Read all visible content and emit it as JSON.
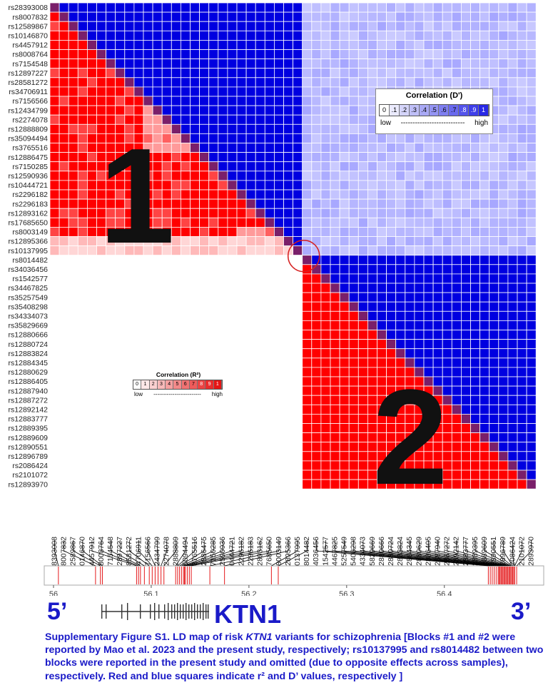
{
  "chart_data": {
    "type": "heatmap",
    "snps": [
      "rs28393008",
      "rs8007832",
      "rs12589867",
      "rs10146870",
      "rs4457912",
      "rs8008764",
      "rs7154548",
      "rs12897227",
      "rs28581272",
      "rs34706911",
      "rs7156566",
      "rs12434799",
      "rs2274078",
      "rs12888809",
      "rs35094494",
      "rs3765516",
      "rs12886475",
      "rs7150285",
      "rs12590936",
      "rs10444721",
      "rs2296182",
      "rs2296183",
      "rs12893162",
      "rs17685650",
      "rs8003149",
      "rs12895366",
      "rs10137995",
      "rs8014482",
      "rs34036456",
      "rs1542577",
      "rs34467825",
      "rs35257549",
      "rs35408298",
      "rs34334073",
      "rs35829669",
      "rs12880666",
      "rs12880724",
      "rs12883824",
      "rs12884345",
      "rs12880629",
      "rs12886405",
      "rs12887940",
      "rs12887272",
      "rs12892142",
      "rs12883777",
      "rs12889395",
      "rs12889609",
      "rs12890551",
      "rs12896789",
      "rs2086424",
      "rs2101072",
      "rs12893970"
    ],
    "lower_triangle_metric": "r2",
    "upper_triangle_metric": "D'",
    "blocks": [
      {
        "label": "1",
        "first_snp": "rs28393008",
        "last_snp": "rs12895366"
      },
      {
        "label": "2",
        "first_snp": "rs34036456",
        "last_snp": "rs12893970"
      }
    ],
    "circled_snps": [
      "rs10137995",
      "rs8014482"
    ],
    "x_axis": {
      "ticks": [
        "56",
        "56.1",
        "56.2",
        "56.3",
        "56.4"
      ],
      "tick_values": [
        56.0,
        56.1,
        56.2,
        56.3,
        56.4
      ],
      "range": [
        56.0,
        56.48
      ]
    }
  },
  "legends": {
    "dprime": {
      "title": "Correlation  (D')",
      "steps": [
        "0",
        ".1",
        ".2",
        ".3",
        ".4",
        ".5",
        ".6",
        ".7",
        ".8",
        ".9",
        "1"
      ],
      "low": "low",
      "dashes": "---------------------------",
      "high": "high"
    },
    "r2": {
      "title": "Correlation  (R²)",
      "steps": [
        "0",
        "1",
        "2",
        "3",
        "4",
        "5",
        "6",
        "7",
        "8",
        "9",
        "1"
      ],
      "low": "low",
      "dashes": "-------------------------",
      "high": "high"
    }
  },
  "gene": {
    "five_prime": "5’",
    "three_prime": "3’",
    "name": "KTN1"
  },
  "caption": {
    "part1": "Supplementary Figure S1. LD map of risk ",
    "gene": "KTN1",
    "part2": " variants for schizophrenia [Blocks #1 and #2 were reported by Mao et al.  2023 and the present study, respectively; rs10137995 and  rs8014482 between two blocks were reported in the present study and omitted (due to opposite effects across samples), respectively. Red and  blue squares indicate r² and D’ values, respectively ]"
  },
  "colors": {
    "dprime_high": "#0000e0",
    "r2_high": "#ff0000",
    "diagonal": "#7a1f6a",
    "caption_text": "#1a1ac8",
    "snp_marker": "#e41a1c",
    "circle": "#d62020"
  }
}
